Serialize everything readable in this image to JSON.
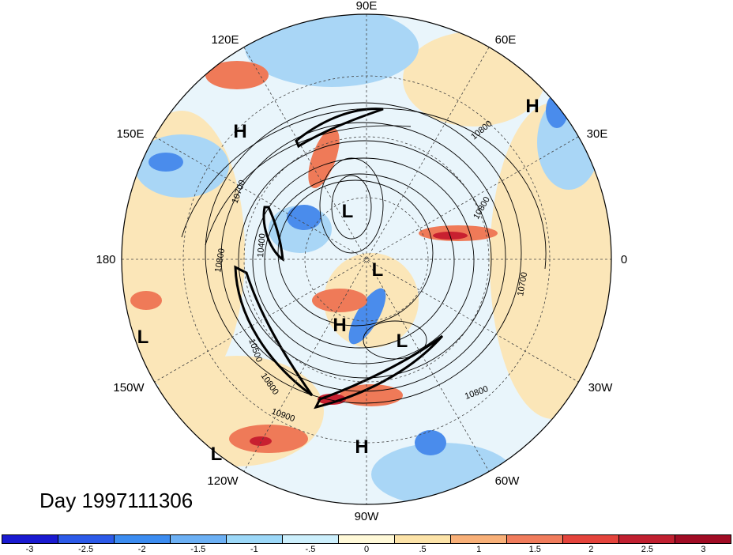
{
  "title": "Day 1997111306",
  "longitude_labels": {
    "north": "90E",
    "ne1": "60E",
    "ne2": "30E",
    "east": "0",
    "se1": "30W",
    "se2": "60W",
    "south": "90W",
    "sw1": "120W",
    "sw2": "150W",
    "west": "180",
    "nw1": "150E",
    "nw2": "120E"
  },
  "pressure_centers": [
    {
      "type": "H",
      "where": "east-siberia"
    },
    {
      "type": "H",
      "where": "kara-sea"
    },
    {
      "type": "L",
      "where": "north-siberia"
    },
    {
      "type": "L",
      "where": "pole"
    },
    {
      "type": "H",
      "where": "canada"
    },
    {
      "type": "L",
      "where": "greenland"
    },
    {
      "type": "L",
      "where": "pacific"
    },
    {
      "type": "L",
      "where": "east-pacific"
    },
    {
      "type": "H",
      "where": "mexico"
    }
  ],
  "contour_labels": [
    "10800",
    "10700",
    "10400",
    "10800",
    "10500",
    "10800",
    "10900",
    "10800",
    "10700",
    "10800"
  ],
  "colorbar": {
    "colors": [
      "#1a1ad0",
      "#2c5ae8",
      "#3c8cf0",
      "#6cb0f4",
      "#9cd8f8",
      "#cceffc",
      "#fff9d8",
      "#fce3a8",
      "#f8b078",
      "#f07c5c",
      "#e4443c",
      "#c02030",
      "#a00c24"
    ],
    "ticks": [
      "-3",
      "-2.5",
      "-2",
      "-1.5",
      "-1",
      "-.5",
      "0",
      ".5",
      "1",
      "1.5",
      "2",
      "2.5",
      "3"
    ]
  }
}
